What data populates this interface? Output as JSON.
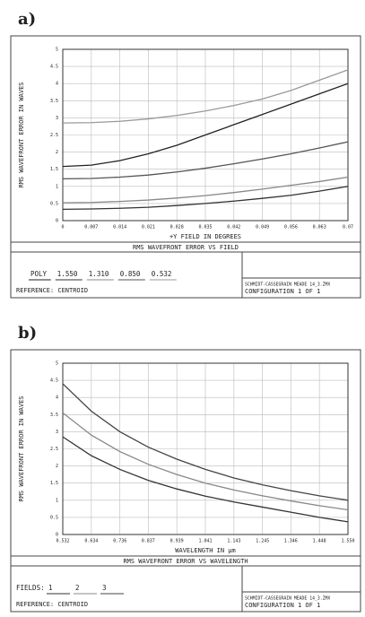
{
  "chart_data": [
    {
      "type": "line",
      "panel_label": "a)",
      "title": "RMS WAVEFRONT ERROR VS FIELD",
      "x_label": "+Y FIELD IN DEGREES",
      "y_label": "RMS WAVEFRONT ERROR IN WAVES",
      "x": [
        0,
        0.007,
        0.014,
        0.021,
        0.028,
        0.035,
        0.042,
        0.049,
        0.056,
        0.063,
        0.07
      ],
      "xlim": [
        0,
        0.07
      ],
      "xticks": [
        0,
        0.007,
        0.014,
        0.021,
        0.028,
        0.035,
        0.042,
        0.049,
        0.056,
        0.063,
        0.07
      ],
      "ylim": [
        0,
        5
      ],
      "yticks": [
        0,
        0.5,
        1,
        1.5,
        2,
        2.5,
        3,
        3.5,
        4,
        4.5,
        5
      ],
      "grid": true,
      "series": [
        {
          "name": "POLY",
          "color": "#222222",
          "values": [
            1.58,
            1.62,
            1.75,
            1.95,
            2.2,
            2.5,
            2.8,
            3.1,
            3.4,
            3.7,
            4.0
          ]
        },
        {
          "name": "1.550",
          "color": "#333333",
          "values": [
            0.33,
            0.34,
            0.36,
            0.39,
            0.44,
            0.5,
            0.57,
            0.65,
            0.74,
            0.86,
            1.0
          ]
        },
        {
          "name": "1.310",
          "color": "#888888",
          "values": [
            0.52,
            0.53,
            0.56,
            0.6,
            0.66,
            0.73,
            0.82,
            0.92,
            1.03,
            1.14,
            1.27
          ]
        },
        {
          "name": "0.850",
          "color": "#555555",
          "values": [
            1.22,
            1.23,
            1.27,
            1.33,
            1.42,
            1.53,
            1.66,
            1.8,
            1.95,
            2.12,
            2.3
          ]
        },
        {
          "name": "0.532",
          "color": "#999999",
          "values": [
            2.85,
            2.86,
            2.9,
            2.97,
            3.07,
            3.2,
            3.36,
            3.55,
            3.8,
            4.1,
            4.4
          ]
        }
      ],
      "reference": "REFERENCE: CENTROID",
      "file": "SCHMIDT-CASSEGRAIN MEADE 14_3.ZMX",
      "configuration": "CONFIGURATION 1 OF 1"
    },
    {
      "type": "line",
      "panel_label": "b)",
      "title": "RMS WAVEFRONT ERROR VS WAVELENGTH",
      "x_label": "WAVELENGTH IN µm",
      "y_label": "RMS WAVEFRONT ERROR IN WAVES",
      "x": [
        0.532,
        0.634,
        0.736,
        0.837,
        0.939,
        1.041,
        1.143,
        1.245,
        1.346,
        1.448,
        1.55
      ],
      "xlim": [
        0.532,
        1.55
      ],
      "xticks": [
        0.532,
        0.634,
        0.736,
        0.837,
        0.939,
        1.041,
        1.143,
        1.245,
        1.346,
        1.448,
        {
          "value": 1.55,
          "label": "1.550"
        }
      ],
      "ylim": [
        0,
        5
      ],
      "yticks": [
        0,
        0.5,
        1,
        1.5,
        2,
        2.5,
        3,
        3.5,
        4,
        4.5,
        5
      ],
      "grid": true,
      "legend_title": "FIELDS:",
      "series": [
        {
          "name": "1",
          "color": "#333333",
          "values": [
            2.85,
            2.3,
            1.9,
            1.58,
            1.33,
            1.12,
            0.95,
            0.8,
            0.65,
            0.5,
            0.37
          ]
        },
        {
          "name": "2",
          "color": "#888888",
          "values": [
            3.55,
            2.9,
            2.42,
            2.05,
            1.75,
            1.5,
            1.3,
            1.13,
            0.98,
            0.84,
            0.72
          ]
        },
        {
          "name": "3",
          "color": "#444444",
          "values": [
            4.4,
            3.6,
            3.0,
            2.55,
            2.2,
            1.9,
            1.65,
            1.45,
            1.28,
            1.13,
            1.0
          ]
        }
      ],
      "reference": "REFERENCE: CENTROID",
      "file": "SCHMIDT-CASSEGRAIN MEADE 14_3.ZMX",
      "configuration": "CONFIGURATION 1 OF 1"
    }
  ]
}
